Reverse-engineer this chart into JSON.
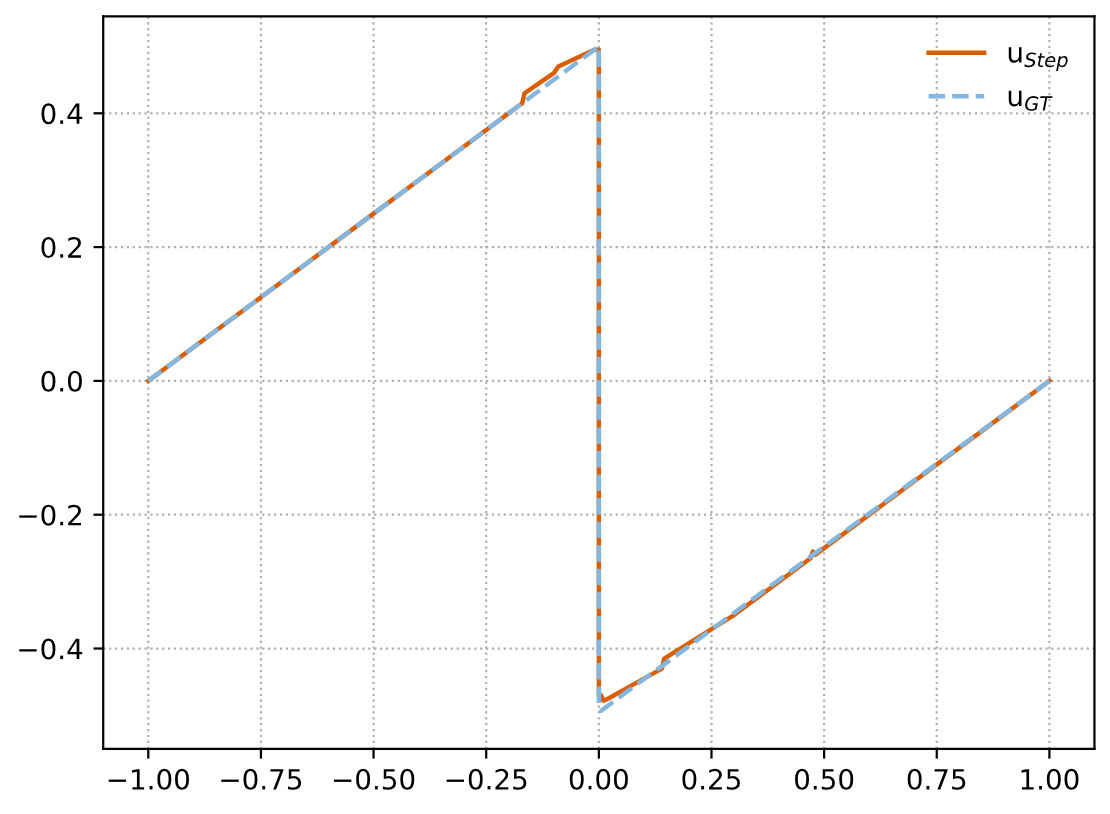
{
  "chart_data": {
    "type": "line",
    "xlim": [
      -1.1,
      1.1
    ],
    "ylim": [
      -0.55,
      0.545
    ],
    "xticks": [
      {
        "value": -1,
        "label": "−1.00"
      },
      {
        "value": -0.75,
        "label": "−0.75"
      },
      {
        "value": -0.5,
        "label": "−0.50"
      },
      {
        "value": -0.25,
        "label": "−0.25"
      },
      {
        "value": 0,
        "label": "0.00"
      },
      {
        "value": 0.25,
        "label": "0.25"
      },
      {
        "value": 0.5,
        "label": "0.50"
      },
      {
        "value": 0.75,
        "label": "0.75"
      },
      {
        "value": 1,
        "label": "1.00"
      }
    ],
    "yticks": [
      {
        "value": -0.4,
        "label": "−0.4"
      },
      {
        "value": -0.2,
        "label": "−0.2"
      },
      {
        "value": 0,
        "label": "0.0"
      },
      0.2,
      0.4
    ],
    "grid": true,
    "legend": "top right",
    "series": [
      {
        "name": "u$_{Step}$",
        "color": "#d95f02",
        "line_style": "solid",
        "x": [
          -1,
          -0.8,
          -0.6,
          -0.5,
          -0.4,
          -0.25,
          -0.17,
          -0.165,
          -0.1,
          -0.09,
          -0.01,
          0.0,
          0.0,
          0.005,
          0.01,
          0.02,
          0.06,
          0.14,
          0.145,
          0.3,
          0.47,
          0.475,
          0.48,
          0.7,
          0.9,
          1.0
        ],
        "values": [
          0,
          0.1,
          0.2,
          0.25,
          0.3,
          0.375,
          0.415,
          0.43,
          0.46,
          0.47,
          0.495,
          0.495,
          -0.47,
          -0.47,
          -0.478,
          -0.475,
          -0.46,
          -0.43,
          -0.415,
          -0.35,
          -0.265,
          -0.255,
          -0.26,
          -0.15,
          -0.05,
          0
        ]
      },
      {
        "name": "u$_{GT}$",
        "color": "#85b6e0",
        "line_style": "dashed",
        "x": [
          -1,
          0.0,
          0.0,
          0.005,
          1.0
        ],
        "values": [
          0,
          0.5,
          -0.49,
          -0.493,
          0
        ]
      }
    ]
  }
}
